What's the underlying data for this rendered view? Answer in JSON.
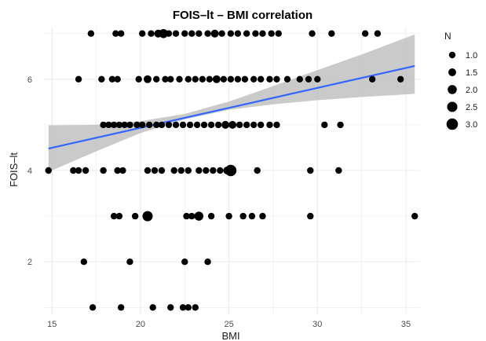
{
  "chart_data": {
    "type": "scatter",
    "title": "FOIS–lt – BMI correlation",
    "xlabel": "BMI",
    "ylabel": "FOIS–lt",
    "xlim": [
      14.5,
      35.8
    ],
    "ylim": [
      0.85,
      7.15
    ],
    "x_ticks": [
      15,
      20,
      25,
      30,
      35
    ],
    "y_ticks": [
      2,
      4,
      6
    ],
    "grid": true,
    "legend": {
      "title": "N",
      "position": "right",
      "entries": [
        "1.0",
        "1.5",
        "2.0",
        "2.5",
        "3.0"
      ],
      "sizes": [
        1.0,
        1.5,
        2.0,
        2.5,
        3.0
      ]
    },
    "colors": {
      "points": "#000000",
      "line": "#3366FF",
      "band": "#bdbdbd",
      "grid": "#ebebeb"
    },
    "regression": {
      "x": [
        14.8,
        35.5
      ],
      "y": [
        4.48,
        6.29
      ],
      "ci_x": [
        14.8,
        17.5,
        20.0,
        22.5,
        25.0,
        27.5,
        30.0,
        32.5,
        35.5
      ],
      "ci_lower": [
        3.97,
        4.42,
        4.82,
        5.12,
        5.33,
        5.45,
        5.54,
        5.61,
        5.68
      ],
      "ci_upper": [
        4.99,
        5.0,
        5.08,
        5.24,
        5.51,
        5.85,
        6.2,
        6.54,
        6.98
      ]
    },
    "points": [
      {
        "x": 17.2,
        "y": 7,
        "n": 1
      },
      {
        "x": 18.6,
        "y": 7,
        "n": 1
      },
      {
        "x": 18.9,
        "y": 7,
        "n": 1
      },
      {
        "x": 20.1,
        "y": 7,
        "n": 1
      },
      {
        "x": 20.6,
        "y": 7,
        "n": 1
      },
      {
        "x": 21.0,
        "y": 7,
        "n": 1.5
      },
      {
        "x": 21.3,
        "y": 7,
        "n": 2
      },
      {
        "x": 21.6,
        "y": 7,
        "n": 1
      },
      {
        "x": 22.0,
        "y": 7,
        "n": 1
      },
      {
        "x": 22.5,
        "y": 7,
        "n": 1
      },
      {
        "x": 22.9,
        "y": 7,
        "n": 1
      },
      {
        "x": 23.3,
        "y": 7,
        "n": 1
      },
      {
        "x": 23.8,
        "y": 7,
        "n": 1
      },
      {
        "x": 24.2,
        "y": 7,
        "n": 1.5
      },
      {
        "x": 24.6,
        "y": 7,
        "n": 1
      },
      {
        "x": 25.1,
        "y": 7,
        "n": 1
      },
      {
        "x": 25.5,
        "y": 7,
        "n": 1
      },
      {
        "x": 26.0,
        "y": 7,
        "n": 1
      },
      {
        "x": 26.5,
        "y": 7,
        "n": 1
      },
      {
        "x": 26.9,
        "y": 7,
        "n": 1
      },
      {
        "x": 27.4,
        "y": 7,
        "n": 1
      },
      {
        "x": 27.8,
        "y": 7,
        "n": 1
      },
      {
        "x": 29.7,
        "y": 7,
        "n": 1
      },
      {
        "x": 30.8,
        "y": 7,
        "n": 1
      },
      {
        "x": 32.7,
        "y": 7,
        "n": 1
      },
      {
        "x": 33.4,
        "y": 7,
        "n": 1
      },
      {
        "x": 16.5,
        "y": 6,
        "n": 1
      },
      {
        "x": 17.8,
        "y": 6,
        "n": 1
      },
      {
        "x": 18.4,
        "y": 6,
        "n": 1
      },
      {
        "x": 18.7,
        "y": 6,
        "n": 1
      },
      {
        "x": 19.9,
        "y": 6,
        "n": 1
      },
      {
        "x": 20.4,
        "y": 6,
        "n": 1.5
      },
      {
        "x": 20.9,
        "y": 6,
        "n": 1
      },
      {
        "x": 21.4,
        "y": 6,
        "n": 1
      },
      {
        "x": 21.7,
        "y": 6,
        "n": 1
      },
      {
        "x": 22.2,
        "y": 6,
        "n": 1
      },
      {
        "x": 22.7,
        "y": 6,
        "n": 1
      },
      {
        "x": 23.1,
        "y": 6,
        "n": 1
      },
      {
        "x": 23.5,
        "y": 6,
        "n": 1
      },
      {
        "x": 23.9,
        "y": 6,
        "n": 1
      },
      {
        "x": 24.3,
        "y": 6,
        "n": 1.5
      },
      {
        "x": 24.7,
        "y": 6,
        "n": 1
      },
      {
        "x": 25.1,
        "y": 6,
        "n": 1
      },
      {
        "x": 25.5,
        "y": 6,
        "n": 1
      },
      {
        "x": 25.9,
        "y": 6,
        "n": 1
      },
      {
        "x": 26.4,
        "y": 6,
        "n": 1
      },
      {
        "x": 26.8,
        "y": 6,
        "n": 1
      },
      {
        "x": 27.3,
        "y": 6,
        "n": 1
      },
      {
        "x": 27.7,
        "y": 6,
        "n": 1
      },
      {
        "x": 28.3,
        "y": 6,
        "n": 1
      },
      {
        "x": 29.0,
        "y": 6,
        "n": 1
      },
      {
        "x": 29.5,
        "y": 6,
        "n": 1
      },
      {
        "x": 30.0,
        "y": 6,
        "n": 1
      },
      {
        "x": 33.1,
        "y": 6,
        "n": 1
      },
      {
        "x": 34.7,
        "y": 6,
        "n": 1
      },
      {
        "x": 17.9,
        "y": 5,
        "n": 1
      },
      {
        "x": 18.2,
        "y": 5,
        "n": 1
      },
      {
        "x": 18.5,
        "y": 5,
        "n": 1
      },
      {
        "x": 18.8,
        "y": 5,
        "n": 1
      },
      {
        "x": 19.1,
        "y": 5,
        "n": 1
      },
      {
        "x": 19.4,
        "y": 5,
        "n": 1
      },
      {
        "x": 19.8,
        "y": 5,
        "n": 1
      },
      {
        "x": 20.1,
        "y": 5,
        "n": 1
      },
      {
        "x": 20.5,
        "y": 5,
        "n": 1
      },
      {
        "x": 20.9,
        "y": 5,
        "n": 1
      },
      {
        "x": 21.2,
        "y": 5,
        "n": 1
      },
      {
        "x": 21.6,
        "y": 5,
        "n": 1
      },
      {
        "x": 22.0,
        "y": 5,
        "n": 1
      },
      {
        "x": 22.4,
        "y": 5,
        "n": 1
      },
      {
        "x": 22.8,
        "y": 5,
        "n": 1
      },
      {
        "x": 23.2,
        "y": 5,
        "n": 1
      },
      {
        "x": 23.6,
        "y": 5,
        "n": 1
      },
      {
        "x": 24.0,
        "y": 5,
        "n": 1
      },
      {
        "x": 24.4,
        "y": 5,
        "n": 1
      },
      {
        "x": 24.8,
        "y": 5,
        "n": 1.5
      },
      {
        "x": 25.2,
        "y": 5,
        "n": 1.5
      },
      {
        "x": 25.6,
        "y": 5,
        "n": 1
      },
      {
        "x": 26.0,
        "y": 5,
        "n": 1
      },
      {
        "x": 26.4,
        "y": 5,
        "n": 1
      },
      {
        "x": 26.8,
        "y": 5,
        "n": 1
      },
      {
        "x": 27.3,
        "y": 5,
        "n": 1
      },
      {
        "x": 27.7,
        "y": 5,
        "n": 1
      },
      {
        "x": 30.4,
        "y": 5,
        "n": 1
      },
      {
        "x": 31.3,
        "y": 5,
        "n": 1
      },
      {
        "x": 14.8,
        "y": 4,
        "n": 1
      },
      {
        "x": 16.2,
        "y": 4,
        "n": 1
      },
      {
        "x": 16.5,
        "y": 4,
        "n": 1
      },
      {
        "x": 16.9,
        "y": 4,
        "n": 1
      },
      {
        "x": 17.9,
        "y": 4,
        "n": 1
      },
      {
        "x": 18.7,
        "y": 4,
        "n": 1
      },
      {
        "x": 19.0,
        "y": 4,
        "n": 1
      },
      {
        "x": 20.4,
        "y": 4,
        "n": 1
      },
      {
        "x": 20.8,
        "y": 4,
        "n": 1
      },
      {
        "x": 21.2,
        "y": 4,
        "n": 1
      },
      {
        "x": 21.9,
        "y": 4,
        "n": 1
      },
      {
        "x": 22.3,
        "y": 4,
        "n": 1
      },
      {
        "x": 22.7,
        "y": 4,
        "n": 1
      },
      {
        "x": 23.3,
        "y": 4,
        "n": 1
      },
      {
        "x": 23.7,
        "y": 4,
        "n": 1
      },
      {
        "x": 24.1,
        "y": 4,
        "n": 1
      },
      {
        "x": 24.5,
        "y": 4,
        "n": 1
      },
      {
        "x": 24.9,
        "y": 4,
        "n": 1.5
      },
      {
        "x": 25.1,
        "y": 4,
        "n": 3
      },
      {
        "x": 26.6,
        "y": 4,
        "n": 1
      },
      {
        "x": 29.6,
        "y": 4,
        "n": 1
      },
      {
        "x": 31.2,
        "y": 4,
        "n": 1
      },
      {
        "x": 18.5,
        "y": 3,
        "n": 1
      },
      {
        "x": 18.8,
        "y": 3,
        "n": 1
      },
      {
        "x": 19.7,
        "y": 3,
        "n": 1
      },
      {
        "x": 20.4,
        "y": 3,
        "n": 2.5
      },
      {
        "x": 22.6,
        "y": 3,
        "n": 1
      },
      {
        "x": 22.9,
        "y": 3,
        "n": 1
      },
      {
        "x": 23.3,
        "y": 3,
        "n": 2
      },
      {
        "x": 24.0,
        "y": 3,
        "n": 1
      },
      {
        "x": 25.0,
        "y": 3,
        "n": 1
      },
      {
        "x": 25.8,
        "y": 3,
        "n": 1
      },
      {
        "x": 26.3,
        "y": 3,
        "n": 1
      },
      {
        "x": 26.9,
        "y": 3,
        "n": 1
      },
      {
        "x": 29.6,
        "y": 3,
        "n": 1
      },
      {
        "x": 35.5,
        "y": 3,
        "n": 1
      },
      {
        "x": 16.8,
        "y": 2,
        "n": 1
      },
      {
        "x": 19.4,
        "y": 2,
        "n": 1
      },
      {
        "x": 22.5,
        "y": 2,
        "n": 1
      },
      {
        "x": 23.8,
        "y": 2,
        "n": 1
      },
      {
        "x": 17.3,
        "y": 1,
        "n": 1
      },
      {
        "x": 18.9,
        "y": 1,
        "n": 1
      },
      {
        "x": 20.7,
        "y": 1,
        "n": 1
      },
      {
        "x": 21.7,
        "y": 1,
        "n": 1
      },
      {
        "x": 22.4,
        "y": 1,
        "n": 1
      },
      {
        "x": 22.7,
        "y": 1,
        "n": 1
      },
      {
        "x": 23.1,
        "y": 1,
        "n": 1
      }
    ]
  }
}
